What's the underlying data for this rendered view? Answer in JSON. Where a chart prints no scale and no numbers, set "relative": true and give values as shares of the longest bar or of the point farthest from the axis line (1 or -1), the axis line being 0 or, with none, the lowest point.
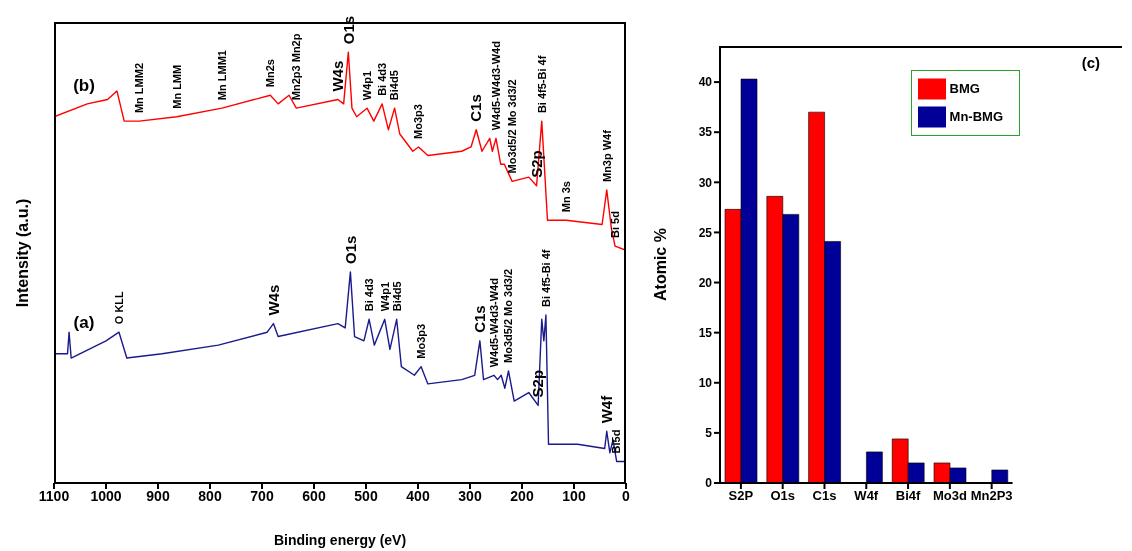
{
  "chart_data": [
    {
      "type": "line",
      "relative": true,
      "xlabel": "Binding energy (eV)",
      "ylabel": "Intensity (a.u.)",
      "xlim": [
        1100,
        0
      ],
      "xticks": [
        1100,
        1000,
        900,
        800,
        700,
        600,
        500,
        400,
        300,
        200,
        100,
        0
      ],
      "series": [
        {
          "name": "(b)",
          "color": "#ff0000",
          "x": [
            1100,
            1036,
            997,
            979,
            965,
            936,
            864,
            777,
            684,
            669,
            648,
            634,
            554,
            543,
            534,
            527,
            518,
            498,
            485,
            469,
            457,
            445,
            435,
            410,
            399,
            381,
            316,
            298,
            288,
            277,
            262,
            257,
            250,
            241,
            234,
            219,
            187,
            172,
            162,
            151,
            115,
            46,
            37,
            28,
            21,
            0
          ],
          "values": [
            0.85,
            0.88,
            0.89,
            0.91,
            0.84,
            0.84,
            0.85,
            0.87,
            0.9,
            0.88,
            0.9,
            0.87,
            0.89,
            0.88,
            1.0,
            0.87,
            0.85,
            0.87,
            0.84,
            0.88,
            0.82,
            0.87,
            0.81,
            0.77,
            0.78,
            0.76,
            0.77,
            0.78,
            0.82,
            0.77,
            0.8,
            0.77,
            0.8,
            0.74,
            0.74,
            0.7,
            0.71,
            0.69,
            0.84,
            0.61,
            0.61,
            0.6,
            0.68,
            0.59,
            0.55,
            0.54
          ]
        },
        {
          "name": "(a)",
          "color": "#1a1a8c",
          "x": [
            1100,
            1074,
            1071,
            1067,
            1000,
            975,
            960,
            892,
            784,
            690,
            678,
            669,
            554,
            540,
            530,
            522,
            504,
            494,
            484,
            464,
            454,
            441,
            432,
            407,
            394,
            381,
            316,
            291,
            281,
            274,
            254,
            247,
            240,
            233,
            226,
            215,
            187,
            169,
            162,
            158,
            154,
            149,
            93,
            41,
            37,
            31,
            25,
            18,
            0
          ],
          "values": [
            0.3,
            0.3,
            0.35,
            0.29,
            0.33,
            0.35,
            0.29,
            0.3,
            0.32,
            0.35,
            0.37,
            0.34,
            0.37,
            0.36,
            0.49,
            0.34,
            0.33,
            0.38,
            0.32,
            0.38,
            0.31,
            0.38,
            0.27,
            0.25,
            0.27,
            0.23,
            0.24,
            0.25,
            0.33,
            0.24,
            0.25,
            0.24,
            0.25,
            0.22,
            0.26,
            0.19,
            0.21,
            0.18,
            0.38,
            0.33,
            0.39,
            0.09,
            0.09,
            0.08,
            0.12,
            0.07,
            0.1,
            0.05,
            0.05
          ]
        }
      ],
      "annotations": [
        {
          "text": "Mn LMM2",
          "x": 936,
          "y": 0.84
        },
        {
          "text": "Mn LMM",
          "x": 864,
          "y": 0.85
        },
        {
          "text": "Mn LMM1",
          "x": 777,
          "y": 0.87
        },
        {
          "text": "Mn2s",
          "x": 684,
          "y": 0.9
        },
        {
          "text": "Mn2p3 Mn2p",
          "x": 634,
          "y": 0.87
        },
        {
          "text": "W4s",
          "x": 554,
          "y": 0.89
        },
        {
          "text": "O1s",
          "x": 534,
          "y": 1.0
        },
        {
          "text": "W4p1",
          "x": 498,
          "y": 0.87
        },
        {
          "text": "Bi 4d3",
          "x": 469,
          "y": 0.88
        },
        {
          "text": "Bi4d5",
          "x": 445,
          "y": 0.87
        },
        {
          "text": "Mo3p3",
          "x": 399,
          "y": 0.78
        },
        {
          "text": "C1s",
          "x": 288,
          "y": 0.82
        },
        {
          "text": "W4d5-W4d3-W4d",
          "x": 250,
          "y": 0.8
        },
        {
          "text": "Mo3d5/2 Mo 3d3/2",
          "x": 219,
          "y": 0.7
        },
        {
          "text": "S2p",
          "x": 172,
          "y": 0.69
        },
        {
          "text": "Bi 4f5-Bi 4f",
          "x": 162,
          "y": 0.84
        },
        {
          "text": "Mn 3s",
          "x": 115,
          "y": 0.61
        },
        {
          "text": "Mn3p W4f",
          "x": 37,
          "y": 0.68
        },
        {
          "text": "Bi 5d",
          "x": 21,
          "y": 0.55
        },
        {
          "text": "O KLL",
          "x": 975,
          "y": 0.35
        },
        {
          "text": "W4s",
          "x": 678,
          "y": 0.37
        },
        {
          "text": "O1s",
          "x": 530,
          "y": 0.49
        },
        {
          "text": "Bi 4d3",
          "x": 494,
          "y": 0.38
        },
        {
          "text": "W4p1",
          "x": 464,
          "y": 0.38
        },
        {
          "text": "Bi4d5",
          "x": 441,
          "y": 0.38
        },
        {
          "text": "Mo3p3",
          "x": 394,
          "y": 0.27
        },
        {
          "text": "C1s",
          "x": 281,
          "y": 0.33
        },
        {
          "text": "W4d5-W4d3-W4d",
          "x": 254,
          "y": 0.25
        },
        {
          "text": "Mo3d5/2 Mo 3d3/2",
          "x": 226,
          "y": 0.26
        },
        {
          "text": "S2p",
          "x": 169,
          "y": 0.18
        },
        {
          "text": "Bi 4f5-Bi 4f",
          "x": 154,
          "y": 0.39
        },
        {
          "text": "W4f",
          "x": 37,
          "y": 0.12
        },
        {
          "text": "Bi5d",
          "x": 18,
          "y": 0.05
        }
      ]
    },
    {
      "type": "bar",
      "ylabel": "Atomic %",
      "categories": [
        "S2P",
        "O1s",
        "C1s",
        "W4f",
        "Bi4f",
        "Mo3d",
        "Mn2P3"
      ],
      "series": [
        {
          "name": "BMG",
          "color": "#ff0000",
          "values": [
            27.3,
            28.6,
            37.0,
            0,
            4.4,
            2.0,
            0
          ]
        },
        {
          "name": "Mn-BMG",
          "color": "#000099",
          "values": [
            40.3,
            26.8,
            24.1,
            3.1,
            2.0,
            1.5,
            1.3
          ]
        }
      ],
      "ylim": [
        0,
        43.6
      ],
      "yticks": [
        0,
        5,
        10,
        15,
        20,
        25,
        30,
        35,
        40
      ],
      "legend": "top right",
      "annotations": [
        "(c)"
      ]
    }
  ]
}
